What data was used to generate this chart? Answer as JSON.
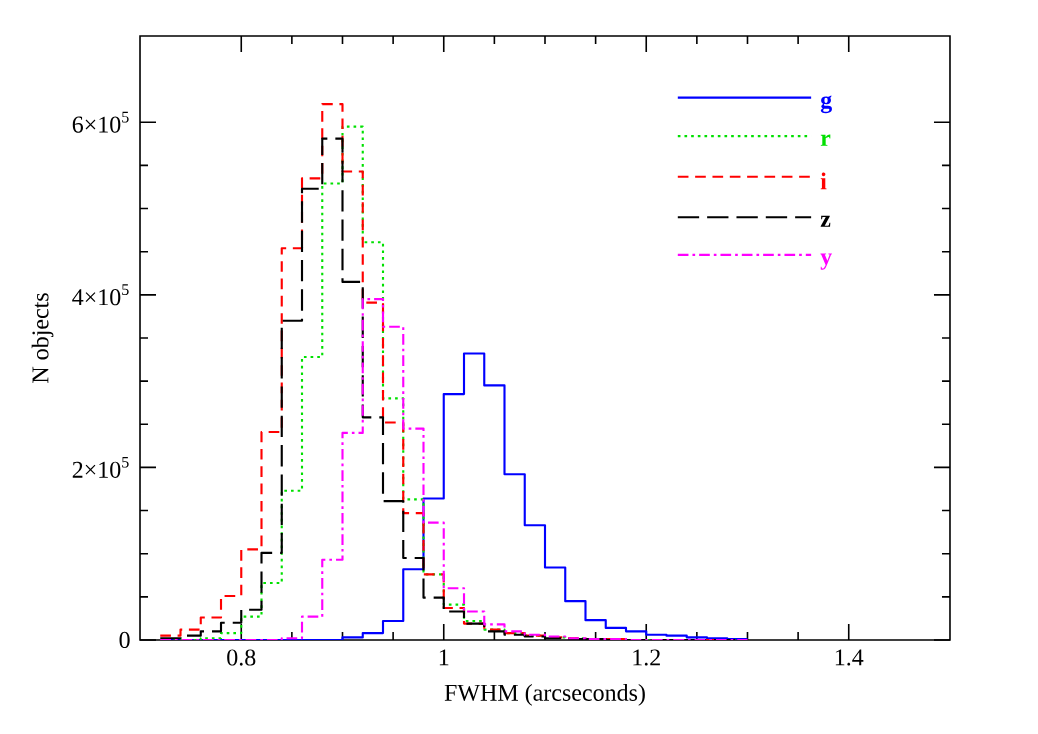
{
  "chart_data": {
    "type": "histogram",
    "xlabel": "FWHM (arcseconds)",
    "ylabel": "N objects",
    "bins": [
      0.72,
      0.74,
      0.76,
      0.78,
      0.8,
      0.82,
      0.84,
      0.86,
      0.88,
      0.9,
      0.92,
      0.94,
      0.96,
      0.98,
      1.0,
      1.02,
      1.04,
      1.06,
      1.08,
      1.1,
      1.12,
      1.14,
      1.16,
      1.18,
      1.2,
      1.22,
      1.24,
      1.26,
      1.28,
      1.3
    ],
    "series": [
      {
        "name": "g",
        "color": "#0000ff",
        "line_style": "solid",
        "values": [
          0,
          0,
          0,
          0,
          0,
          0,
          0,
          0,
          0,
          3000,
          8000,
          22000,
          82000,
          164000,
          285000,
          332000,
          295000,
          192000,
          133000,
          84000,
          45000,
          23000,
          14000,
          10000,
          6000,
          5000,
          3000,
          2000,
          1000
        ]
      },
      {
        "name": "r",
        "color": "#00e000",
        "line_style": "dotted",
        "values": [
          0,
          0,
          2000,
          8000,
          27000,
          66000,
          173000,
          328000,
          529000,
          595000,
          461000,
          280000,
          163000,
          76000,
          41000,
          22000,
          12000,
          8000,
          5000,
          3000,
          2000,
          1000,
          1000,
          0,
          0,
          0,
          0,
          0,
          0
        ]
      },
      {
        "name": "i",
        "color": "#ff0000",
        "line_style": "dashed",
        "values": [
          5000,
          12000,
          26000,
          51000,
          105000,
          241000,
          454000,
          535000,
          621000,
          543000,
          391000,
          252000,
          147000,
          76000,
          37000,
          19000,
          12000,
          8000,
          5000,
          3000,
          2000,
          1000,
          1000,
          0,
          0,
          0,
          0,
          0,
          0
        ]
      },
      {
        "name": "z",
        "color": "#000000",
        "line_style": "longdash",
        "values": [
          2000,
          5000,
          10000,
          20000,
          35000,
          101000,
          370000,
          523000,
          581000,
          415000,
          258000,
          161000,
          95000,
          49000,
          33000,
          19000,
          10000,
          6000,
          4000,
          2000,
          1000,
          1000,
          0,
          0,
          0,
          0,
          0,
          0,
          0
        ]
      },
      {
        "name": "y",
        "color": "#ff00ff",
        "line_style": "dashdot",
        "values": [
          0,
          0,
          0,
          0,
          0,
          0,
          2000,
          27000,
          93000,
          240000,
          395000,
          363000,
          245000,
          136000,
          60000,
          33000,
          18000,
          10000,
          6000,
          4000,
          2000,
          1000,
          1000,
          0,
          0,
          0,
          0,
          0,
          0
        ]
      }
    ],
    "xlim": [
      0.7,
      1.5
    ],
    "xticks": [
      0.8,
      1,
      1.2,
      1.4
    ],
    "ylim": [
      0,
      700000
    ],
    "yticks": [
      0,
      {
        "value": 200000,
        "label": "2×10$^{5}$"
      },
      {
        "value": 400000,
        "label": "4×10$^{5}$"
      },
      {
        "value": 600000,
        "label": "6×10$^{5}$"
      }
    ],
    "legend": "top right",
    "grid": false
  }
}
